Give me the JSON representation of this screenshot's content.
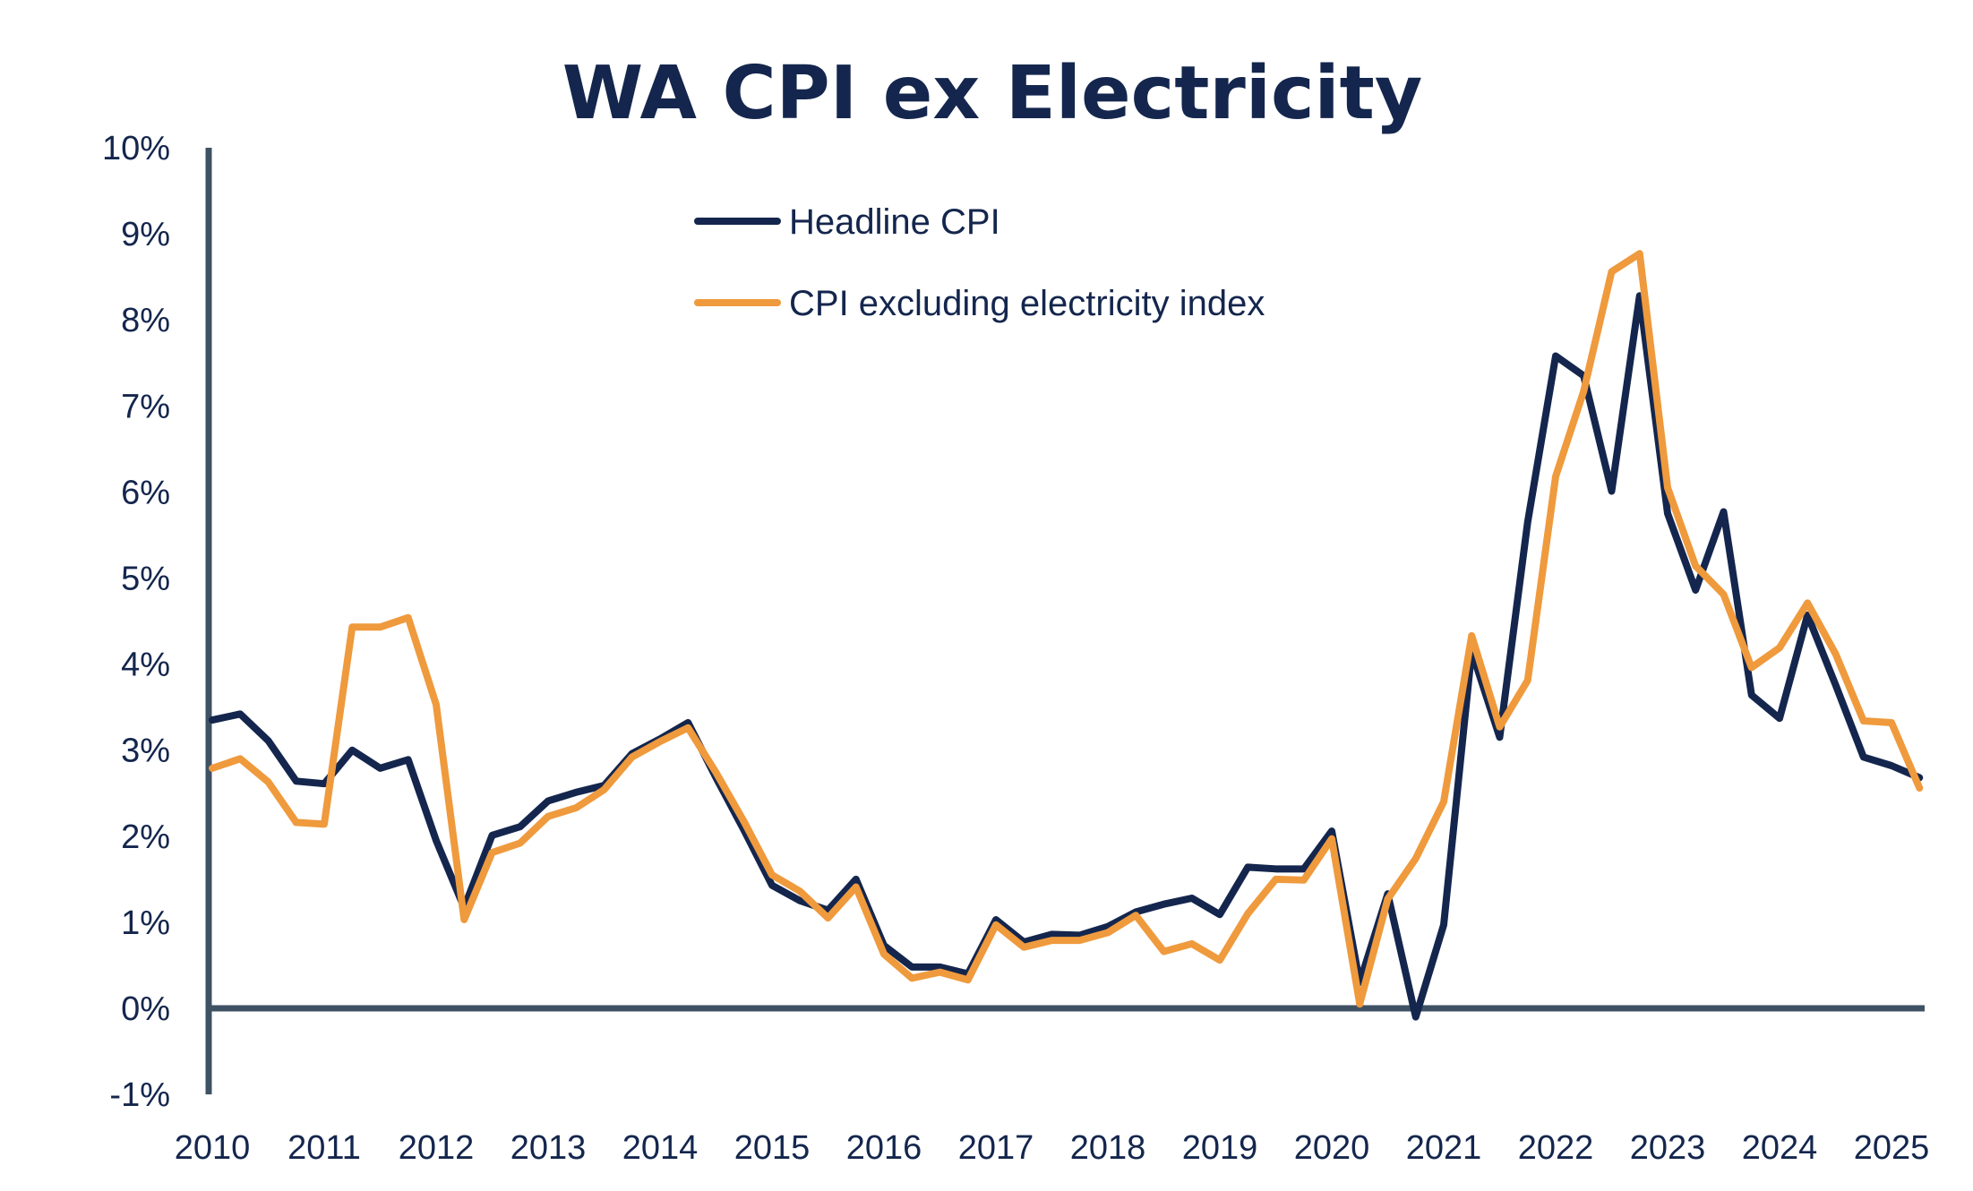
{
  "chart_data": {
    "type": "line",
    "title": "WA CPI ex Electricity",
    "xlabel": "",
    "ylabel": "",
    "frequency": "quarterly",
    "x_start": "2010 Q1",
    "x_end": "2025 Q2",
    "xticks": [
      "2010",
      "2011",
      "2012",
      "2013",
      "2014",
      "2015",
      "2016",
      "2017",
      "2018",
      "2019",
      "2020",
      "2021",
      "2022",
      "2023",
      "2024",
      "2025"
    ],
    "yticks": [
      "10%",
      "9%",
      "8%",
      "7%",
      "6%",
      "5%",
      "4%",
      "3%",
      "2%",
      "1%",
      "0%",
      "-1%"
    ],
    "ylim": [
      -1,
      10
    ],
    "yunit": "%",
    "grid": false,
    "legend_position": "top-center",
    "series": [
      {
        "name": "Headline CPI",
        "color": "#14264d",
        "values": [
          3.35,
          3.42,
          3.11,
          2.64,
          2.61,
          3.0,
          2.79,
          2.89,
          1.95,
          1.17,
          2.01,
          2.11,
          2.41,
          2.51,
          2.59,
          2.96,
          3.13,
          3.32,
          2.68,
          2.07,
          1.43,
          1.25,
          1.14,
          1.5,
          0.73,
          0.48,
          0.48,
          0.4,
          1.03,
          0.77,
          0.86,
          0.85,
          0.95,
          1.12,
          1.21,
          1.28,
          1.09,
          1.64,
          1.62,
          1.62,
          2.06,
          0.3,
          1.33,
          -0.1,
          0.97,
          4.15,
          3.15,
          5.65,
          7.58,
          7.35,
          6.01,
          8.28,
          5.75,
          4.86,
          5.77,
          3.64,
          3.37,
          4.57,
          3.76,
          2.92,
          2.82,
          2.68
        ]
      },
      {
        "name": "CPI excluding electricity index",
        "color": "#ef9a3d",
        "values": [
          2.79,
          2.9,
          2.63,
          2.16,
          2.14,
          4.43,
          4.43,
          4.54,
          3.53,
          1.03,
          1.81,
          1.92,
          2.23,
          2.33,
          2.54,
          2.92,
          3.1,
          3.26,
          2.74,
          2.17,
          1.55,
          1.36,
          1.05,
          1.41,
          0.63,
          0.35,
          0.42,
          0.33,
          0.97,
          0.71,
          0.79,
          0.79,
          0.88,
          1.08,
          0.66,
          0.75,
          0.56,
          1.1,
          1.5,
          1.49,
          1.97,
          0.05,
          1.27,
          1.74,
          2.4,
          4.33,
          3.27,
          3.81,
          6.18,
          7.17,
          8.56,
          8.77,
          6.05,
          5.14,
          4.81,
          3.96,
          4.19,
          4.71,
          4.12,
          3.34,
          3.32,
          2.56
        ]
      }
    ]
  }
}
